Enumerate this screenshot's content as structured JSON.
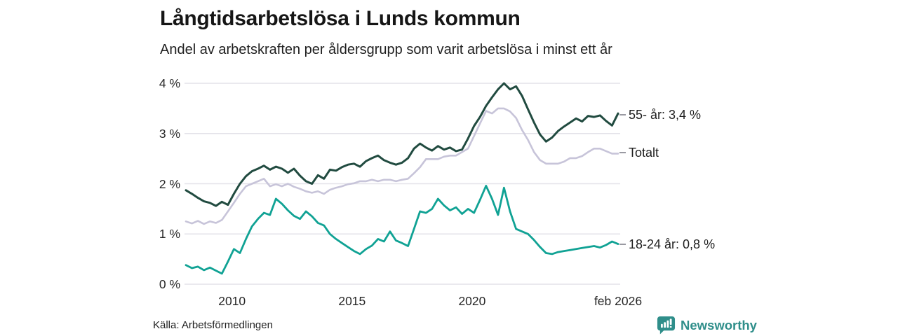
{
  "header": {
    "title": "Långtidsarbetslösa i Lunds kommun",
    "subtitle": "Andel av arbetskraften per åldersgrupp som varit arbetslösa i minst ett år"
  },
  "footer": {
    "source": "Källa: Arbetsförmedlingen",
    "brand": "Newsworthy",
    "brand_icon": "newsworthy-chart-bubble-icon",
    "brand_color": "#2f8e8a"
  },
  "colors": {
    "grid": "#e3e2e9",
    "text": "#1d1d1d",
    "connector": "#9a9aa2"
  },
  "chart_data": {
    "type": "line",
    "title": "Långtidsarbetslösa i Lunds kommun",
    "subtitle": "Andel av arbetskraften per åldersgrupp som varit arbetslösa i minst ett år",
    "xlabel": "",
    "ylabel": "",
    "ylim": [
      0,
      4
    ],
    "grid": true,
    "legend_position": "right-end-labels",
    "x_start": 2008.08,
    "x_step": 0.25,
    "grid_color": "#e3e2e9",
    "y_ticks": [
      {
        "value": 0,
        "label": "0 %"
      },
      {
        "value": 1,
        "label": "1 %"
      },
      {
        "value": 2,
        "label": "2 %"
      },
      {
        "value": 3,
        "label": "3 %"
      },
      {
        "value": 4,
        "label": "4 %"
      }
    ],
    "x_ticks": [
      {
        "x": 2010,
        "label": "2010"
      },
      {
        "x": 2015,
        "label": "2015"
      },
      {
        "x": 2020,
        "label": "2020"
      },
      {
        "x": 2026.08,
        "label": "feb 2026"
      }
    ],
    "series": [
      {
        "id": "totalt",
        "name": "Totalt",
        "end_label": "Totalt",
        "color": "#c7c4d9",
        "width": 2.6,
        "values": [
          1.25,
          1.21,
          1.26,
          1.2,
          1.25,
          1.22,
          1.28,
          1.45,
          1.62,
          1.8,
          1.95,
          2.0,
          2.05,
          2.1,
          1.95,
          1.99,
          1.95,
          2.0,
          1.94,
          1.9,
          1.85,
          1.82,
          1.85,
          1.8,
          1.88,
          1.92,
          1.95,
          1.99,
          2.01,
          2.05,
          2.05,
          2.08,
          2.05,
          2.08,
          2.08,
          2.05,
          2.08,
          2.1,
          2.21,
          2.33,
          2.49,
          2.49,
          2.49,
          2.54,
          2.56,
          2.56,
          2.63,
          2.7,
          2.95,
          3.2,
          3.45,
          3.4,
          3.5,
          3.5,
          3.44,
          3.31,
          3.07,
          2.87,
          2.63,
          2.47,
          2.4,
          2.4,
          2.4,
          2.44,
          2.51,
          2.51,
          2.55,
          2.63,
          2.7,
          2.7,
          2.65,
          2.6,
          2.6
        ]
      },
      {
        "id": "18-24",
        "name": "18-24 år",
        "end_label": "18-24 år: 0,8 %",
        "end_value": 0.8,
        "color": "#10a294",
        "width": 2.8,
        "values": [
          0.38,
          0.32,
          0.35,
          0.28,
          0.33,
          0.27,
          0.21,
          0.45,
          0.7,
          0.62,
          0.9,
          1.15,
          1.3,
          1.42,
          1.38,
          1.7,
          1.6,
          1.47,
          1.36,
          1.3,
          1.45,
          1.35,
          1.22,
          1.17,
          1.0,
          0.9,
          0.82,
          0.74,
          0.66,
          0.6,
          0.7,
          0.77,
          0.9,
          0.85,
          1.05,
          0.87,
          0.82,
          0.76,
          1.1,
          1.45,
          1.42,
          1.5,
          1.7,
          1.57,
          1.47,
          1.53,
          1.4,
          1.5,
          1.42,
          1.68,
          1.96,
          1.7,
          1.38,
          1.92,
          1.45,
          1.1,
          1.05,
          1.0,
          0.88,
          0.74,
          0.62,
          0.6,
          0.64,
          0.66,
          0.68,
          0.7,
          0.72,
          0.74,
          0.76,
          0.73,
          0.78,
          0.85,
          0.8
        ]
      },
      {
        "id": "55plus",
        "name": "55- år",
        "end_label": "55- år: 3,4 %",
        "end_value": 3.4,
        "color": "#214b40",
        "width": 3.0,
        "values": [
          1.87,
          1.8,
          1.72,
          1.65,
          1.62,
          1.56,
          1.64,
          1.58,
          1.8,
          2.0,
          2.15,
          2.25,
          2.3,
          2.36,
          2.28,
          2.34,
          2.3,
          2.22,
          2.3,
          2.16,
          2.05,
          2.0,
          2.17,
          2.1,
          2.28,
          2.26,
          2.33,
          2.38,
          2.4,
          2.34,
          2.45,
          2.51,
          2.56,
          2.47,
          2.42,
          2.38,
          2.42,
          2.51,
          2.7,
          2.8,
          2.72,
          2.66,
          2.75,
          2.68,
          2.72,
          2.65,
          2.68,
          2.9,
          3.15,
          3.33,
          3.55,
          3.72,
          3.88,
          4.0,
          3.88,
          3.94,
          3.75,
          3.48,
          3.22,
          2.98,
          2.84,
          2.92,
          3.05,
          3.14,
          3.22,
          3.3,
          3.24,
          3.35,
          3.33,
          3.36,
          3.25,
          3.16,
          3.4
        ]
      }
    ]
  }
}
